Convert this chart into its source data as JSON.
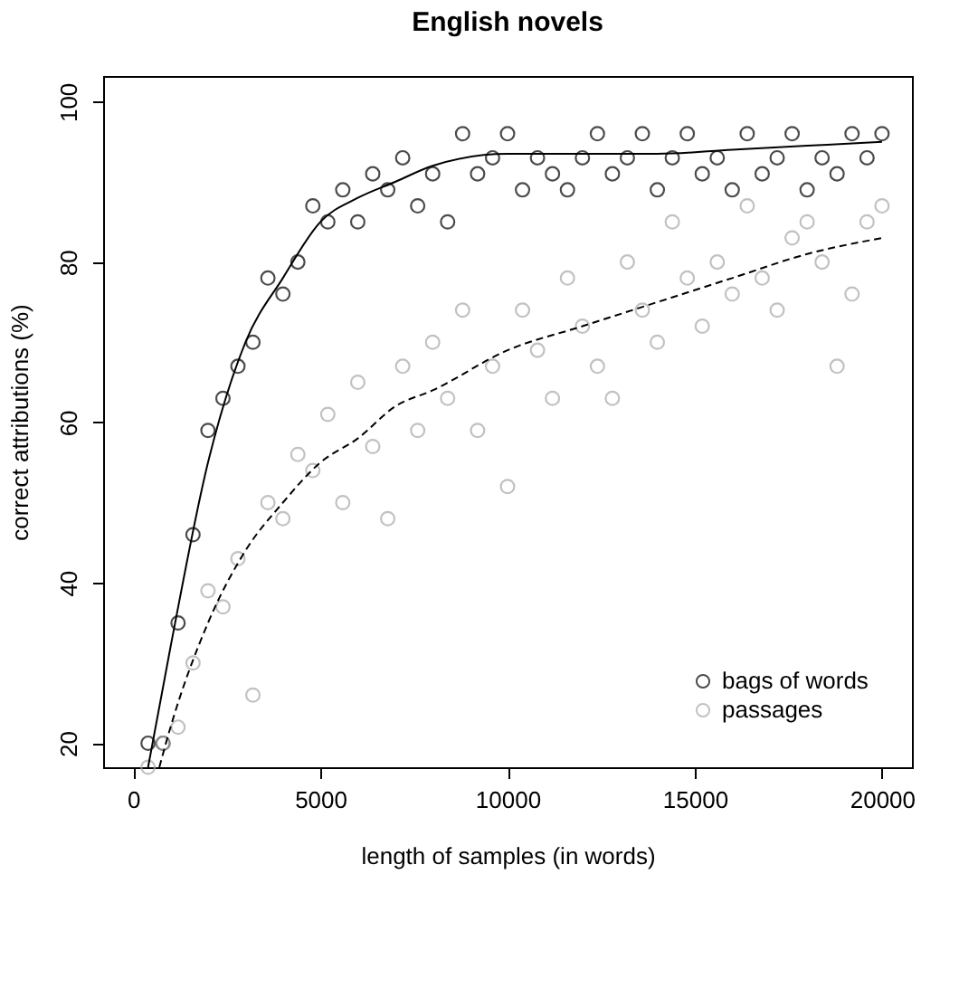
{
  "chart_data": {
    "type": "scatter",
    "title": "English novels",
    "xlabel": "length of samples (in words)",
    "ylabel": "correct attributions (%)",
    "xlim": [
      -800,
      20800
    ],
    "ylim": [
      17,
      103.2
    ],
    "xticks": [
      0,
      5000,
      10000,
      15000,
      20000
    ],
    "yticks": [
      20,
      40,
      60,
      80,
      100
    ],
    "grid": false,
    "legend": "bottom right",
    "marker": "circle",
    "series": [
      {
        "name": "bags of words",
        "color": "#000000",
        "x": [
          400,
          800,
          1200,
          1600,
          2000,
          2400,
          2800,
          3200,
          3600,
          4000,
          4400,
          4800,
          5200,
          5600,
          6000,
          6400,
          6800,
          7200,
          7600,
          8000,
          8400,
          8800,
          9200,
          9600,
          10000,
          10400,
          10800,
          11200,
          11600,
          12000,
          12400,
          12800,
          13200,
          13600,
          14000,
          14400,
          14800,
          15200,
          15600,
          16000,
          16400,
          16800,
          17200,
          17600,
          18000,
          18400,
          18800,
          19200,
          19600,
          20000
        ],
        "values": [
          20,
          20,
          35,
          46,
          59,
          63,
          67,
          70,
          78,
          76,
          80,
          87,
          85,
          89,
          85,
          91,
          89,
          93,
          87,
          91,
          85,
          96,
          91,
          93,
          96,
          89,
          93,
          91,
          89,
          93,
          96,
          91,
          93,
          96,
          89,
          93,
          96,
          91,
          93,
          89,
          96,
          91,
          93,
          96,
          89,
          93,
          91,
          96,
          93,
          96
        ]
      },
      {
        "name": "passages",
        "color": "#a8a8a8",
        "x": [
          400,
          800,
          1200,
          1600,
          2000,
          2400,
          2800,
          3200,
          3600,
          4000,
          4400,
          4800,
          5200,
          5600,
          6000,
          6400,
          6800,
          7200,
          7600,
          8000,
          8400,
          8800,
          9200,
          9600,
          10000,
          10400,
          10800,
          11200,
          11600,
          12000,
          12400,
          12800,
          13200,
          13600,
          14000,
          14400,
          14800,
          15200,
          15600,
          16000,
          16400,
          16800,
          17200,
          17600,
          18000,
          18400,
          18800,
          19200,
          19600,
          20000
        ],
        "values": [
          17,
          20,
          22,
          30,
          39,
          37,
          43,
          26,
          50,
          48,
          56,
          54,
          61,
          50,
          65,
          57,
          48,
          67,
          59,
          70,
          63,
          74,
          59,
          67,
          52,
          74,
          69,
          63,
          78,
          72,
          67,
          63,
          80,
          74,
          70,
          85,
          78,
          72,
          80,
          76,
          87,
          78,
          74,
          83,
          85,
          80,
          67,
          76,
          85,
          87
        ]
      },
      {
        "type": "line",
        "marker": "none",
        "color": "#000000",
        "line_style": "solid",
        "x": [
          400,
          1000,
          2000,
          3000,
          4000,
          5000,
          6000,
          7000,
          8000,
          10000,
          12000,
          14000,
          16000,
          18000,
          20000
        ],
        "values": [
          17,
          32,
          55,
          70,
          78,
          85,
          88,
          90,
          92,
          93.5,
          93.5,
          93.5,
          94,
          94.5,
          95
        ]
      },
      {
        "type": "line",
        "marker": "none",
        "color": "#000000",
        "line_style": "dashed",
        "x": [
          700,
          1000,
          2000,
          3000,
          4000,
          5000,
          6000,
          7000,
          8000,
          10000,
          12000,
          14000,
          16000,
          18000,
          20000
        ],
        "values": [
          17,
          22,
          35,
          44,
          50,
          55,
          58,
          62,
          64,
          69,
          72,
          75,
          78,
          81,
          83
        ]
      }
    ]
  }
}
